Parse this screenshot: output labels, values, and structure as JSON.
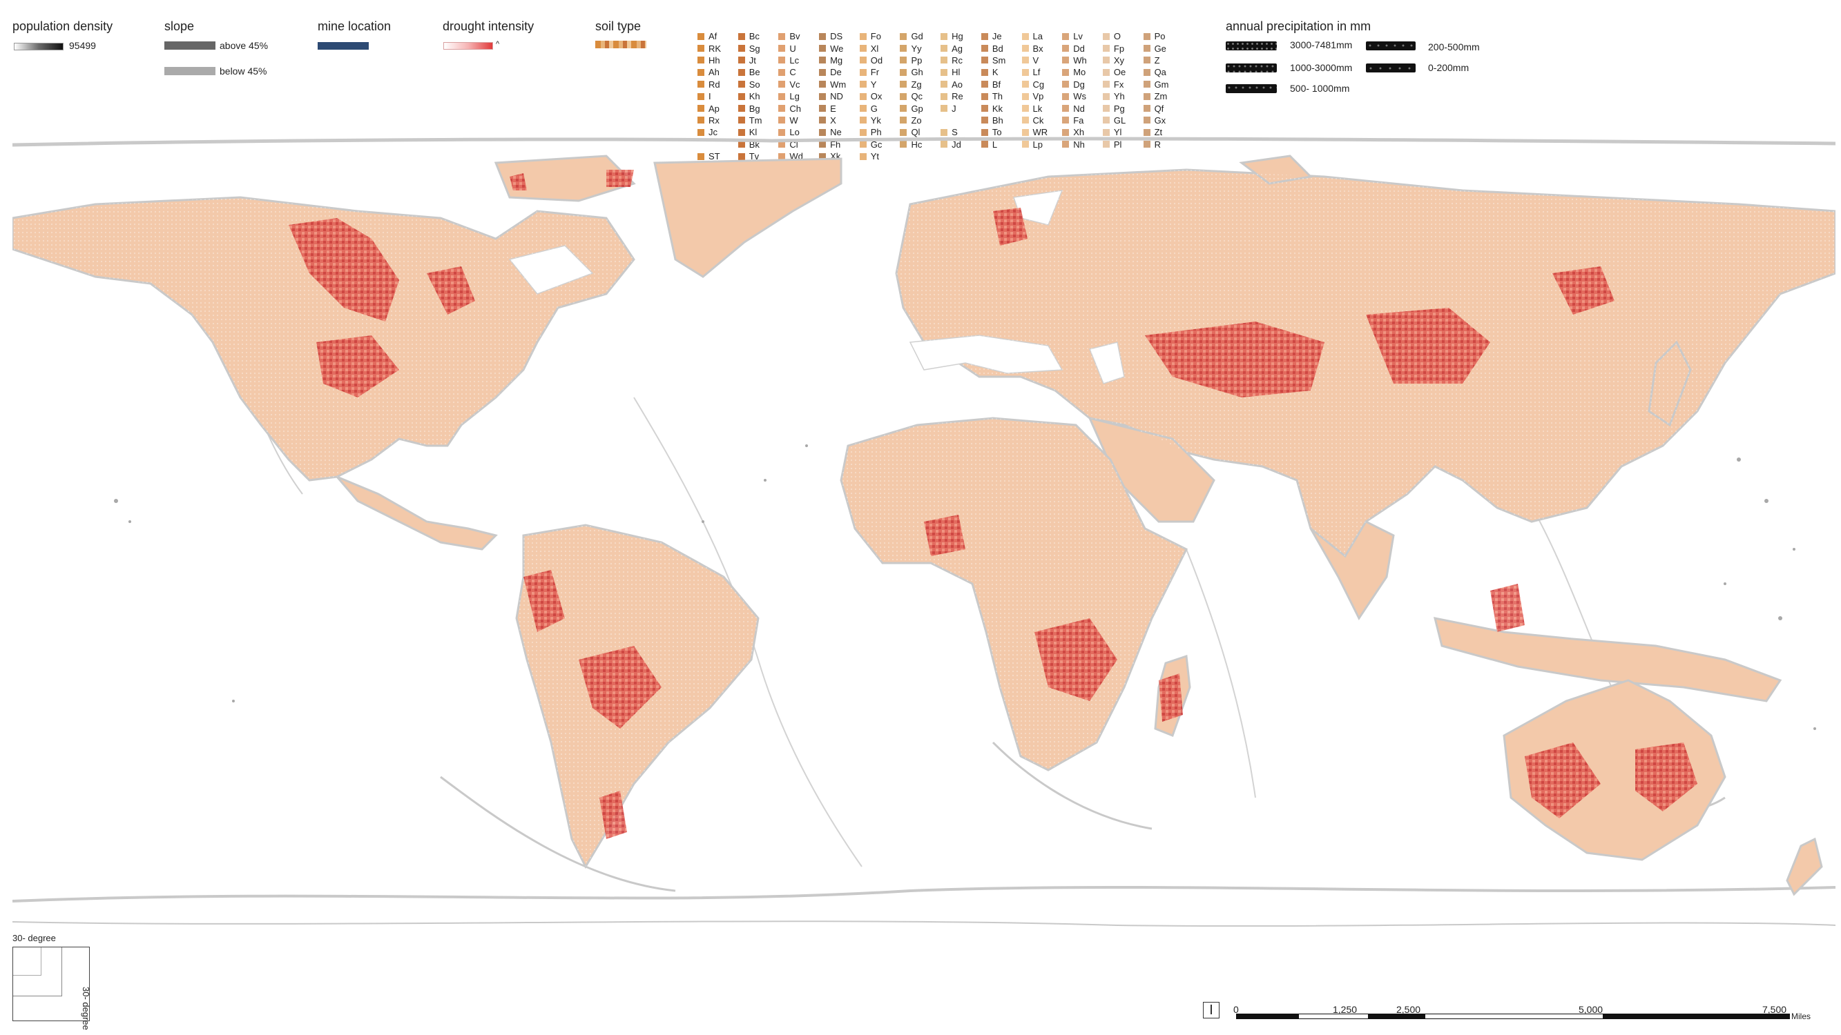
{
  "legend": {
    "population_density": {
      "title": "population density",
      "max_label": "95499"
    },
    "slope": {
      "title": "slope",
      "above_label": "above 45%",
      "below_label": "below 45%"
    },
    "mine_location": {
      "title": "mine location",
      "color": "#2d4a73"
    },
    "drought_intensity": {
      "title": "drought intensity",
      "caret": "^"
    },
    "soil_type": {
      "title": "soil type",
      "codes": [
        "Af",
        "Bc",
        "Bv",
        "DS",
        "Fo",
        "Gd",
        "Hg",
        "Je",
        "La",
        "Lv",
        "O",
        "Po",
        "RK",
        "Sg",
        "U",
        "We",
        "Xl",
        "Yy",
        "Ag",
        "Bd",
        "Bx",
        "Dd",
        "Fp",
        "Ge",
        "Hh",
        "Jt",
        "Lc",
        "Mg",
        "Od",
        "Pp",
        "Rc",
        "Sm",
        "V",
        "Wh",
        "Xy",
        "Z",
        "Ah",
        "Be",
        "C",
        "De",
        "Fr",
        "Gh",
        "Hl",
        "K",
        "Lf",
        "Mo",
        "Oe",
        "Qa",
        "Rd",
        "So",
        "Vc",
        "Wm",
        "Y",
        "Zg",
        "Ao",
        "Bf",
        "Cg",
        "Dg",
        "Fx",
        "Gm",
        "I",
        "Kh",
        "Lg",
        "ND",
        "Ox",
        "Qc",
        "Re",
        "Th",
        "Vp",
        "Ws",
        "Yh",
        "Zm",
        "Ap",
        "Bg",
        "Ch",
        "E",
        "G",
        "Gp",
        "J",
        "Kk",
        "Lk",
        "Nd",
        "Pg",
        "Qf",
        "Rx",
        "Tm",
        "W",
        "X",
        "Yk",
        "Zo",
        "",
        "Bh",
        "Ck",
        "Fa",
        "GL",
        "Gx",
        "Jc",
        "Kl",
        "Lo",
        "Ne",
        "Ph",
        "Ql",
        "S",
        "To",
        "WR",
        "Xh",
        "Yl",
        "Zt",
        "",
        "Bk",
        "Cl",
        "Fh",
        "Gc",
        "Hc",
        "Jd",
        "L",
        "Lp",
        "Nh",
        "Pl",
        "R",
        "ST",
        "Tv",
        "Wd",
        "Xk",
        "Yt",
        ""
      ],
      "colors": [
        "#d98c3d",
        "#c9743a",
        "#e0a070",
        "#b8865a",
        "#e8b47a",
        "#d4a56a",
        "#e6c08a",
        "#c98a5a",
        "#f0c898",
        "#d9a57a",
        "#e8c8a8",
        "#cfa27a"
      ]
    },
    "annual_precipitation": {
      "title": "annual precipitation in mm",
      "classes": [
        "3000-7481mm",
        "200-500mm",
        "1000-3000mm",
        "0-200mm",
        "500- 1000mm"
      ]
    }
  },
  "grid_note": {
    "top": "30- degree",
    "side": "30- degree"
  },
  "scale_bar": {
    "ticks": [
      "0",
      "1,250",
      "2,500",
      "5,000",
      "7,500"
    ],
    "unit": "Miles"
  },
  "map": {
    "land_fill": "#f3c9aa",
    "drought_color": "#d9383a",
    "bathymetry_color": "#c9c9c9"
  }
}
